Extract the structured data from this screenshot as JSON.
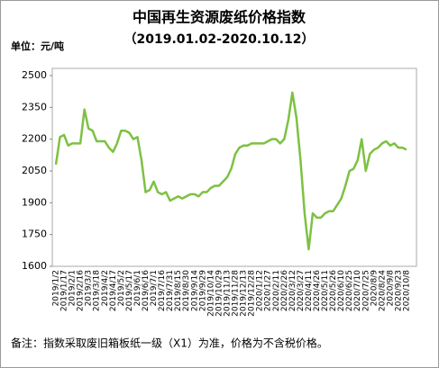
{
  "chart_data": {
    "type": "line",
    "title": "中国再生资源废纸价格指数",
    "subtitle": "（2019.01.02-2020.10.12）",
    "unit_label": "单位：元/吨",
    "footnote": "备注：指数采取废旧箱板纸一级（X1）为准，价格为不含税价格。",
    "categories": [
      "2019/1/2",
      null,
      "2019/1/17",
      null,
      "2019/2/1",
      null,
      "2019/2/16",
      null,
      "2019/3/3",
      null,
      "2019/3/18",
      null,
      "2019/4/2",
      null,
      "2019/4/17",
      null,
      "2019/5/2",
      null,
      "2019/5/17",
      null,
      "2019/6/1",
      null,
      "2019/6/16",
      null,
      "2019/7/1",
      null,
      "2019/7/16",
      null,
      "2019/7/31",
      null,
      "2019/8/15",
      null,
      "2019/8/30",
      null,
      "2019/9/14",
      null,
      "2019/9/29",
      null,
      "2019/10/14",
      null,
      "2019/10/29",
      null,
      "2019/11/13",
      null,
      "2019/11/28",
      null,
      "2019/12/13",
      null,
      "2019/12/28",
      null,
      "2020/1/12",
      null,
      "2020/1/27",
      null,
      "2020/2/11",
      null,
      "2020/2/26",
      null,
      "2020/3/12",
      null,
      "2020/3/27",
      null,
      "2020/4/11",
      null,
      "2020/4/26",
      null,
      "2020/5/11",
      null,
      "2020/5/26",
      null,
      "2020/6/10",
      null,
      "2020/6/25",
      null,
      "2020/7/10",
      null,
      "2020/7/25",
      null,
      "2020/8/9",
      null,
      "2020/8/24",
      null,
      "2020/9/8",
      null,
      "2020/9/23",
      null,
      "2020/10/8"
    ],
    "series": [
      {
        "name": "废纸价格指数",
        "color": "#7dc142",
        "values": [
          2080,
          2210,
          2220,
          2170,
          2180,
          2180,
          2180,
          2340,
          2250,
          2240,
          2190,
          2190,
          2190,
          2160,
          2140,
          2180,
          2240,
          2240,
          2230,
          2200,
          2210,
          2100,
          1950,
          1960,
          2000,
          1950,
          1940,
          1950,
          1910,
          1920,
          1930,
          1920,
          1930,
          1940,
          1940,
          1930,
          1950,
          1950,
          1970,
          1980,
          1980,
          2000,
          2020,
          2060,
          2130,
          2160,
          2170,
          2170,
          2180,
          2180,
          2180,
          2180,
          2190,
          2200,
          2200,
          2180,
          2200,
          2290,
          2420,
          2300,
          2100,
          1850,
          1680,
          1850,
          1830,
          1830,
          1850,
          1860,
          1860,
          1890,
          1920,
          1980,
          2050,
          2060,
          2100,
          2200,
          2050,
          2130,
          2150,
          2160,
          2180,
          2190,
          2170,
          2180,
          2160,
          2160,
          2150
        ]
      }
    ],
    "ylim": [
      1600,
      2500
    ],
    "yticks": [
      1600,
      1750,
      1900,
      2050,
      2200,
      2350,
      2500
    ]
  }
}
